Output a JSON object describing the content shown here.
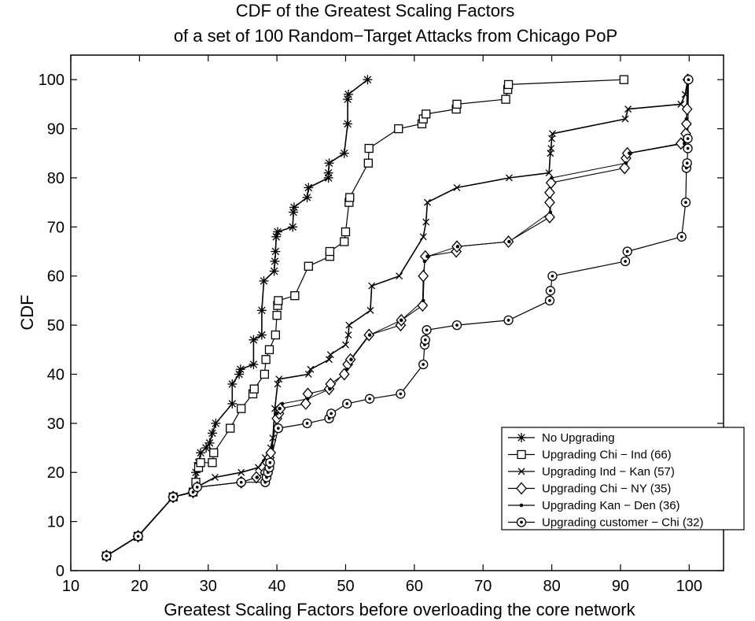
{
  "chart_data": {
    "type": "line",
    "title": "CDF of the Greatest Scaling Factors",
    "subtitle": "of a set of 100 Random−Target Attacks from Chicago PoP",
    "xlabel": "Greatest Scaling Factors before overloading the core network",
    "ylabel": "CDF",
    "xlim": [
      10,
      105
    ],
    "ylim": [
      0,
      105
    ],
    "xticks": [
      "10",
      "20",
      "30",
      "40",
      "50",
      "60",
      "70",
      "80",
      "90",
      "100"
    ],
    "yticks": [
      "0",
      "10",
      "20",
      "30",
      "40",
      "50",
      "60",
      "70",
      "80",
      "90",
      "100"
    ],
    "grid": false,
    "legend_position": "bottom-right",
    "series": [
      {
        "name": "No Upgrading",
        "marker": "asterisk",
        "points": [
          [
            15.2,
            3
          ],
          [
            19.8,
            7
          ],
          [
            24.9,
            15
          ],
          [
            27.8,
            16
          ],
          [
            28.2,
            20
          ],
          [
            28.6,
            22
          ],
          [
            28.9,
            24
          ],
          [
            29.7,
            25
          ],
          [
            30.2,
            26
          ],
          [
            30.6,
            28
          ],
          [
            31.1,
            30
          ],
          [
            33.5,
            34
          ],
          [
            33.5,
            38
          ],
          [
            34.5,
            40
          ],
          [
            34.7,
            41
          ],
          [
            36.6,
            42
          ],
          [
            36.6,
            47
          ],
          [
            37.8,
            48
          ],
          [
            37.8,
            53
          ],
          [
            38.1,
            59
          ],
          [
            39.6,
            61
          ],
          [
            39.7,
            63
          ],
          [
            39.8,
            65
          ],
          [
            39.9,
            68
          ],
          [
            40.1,
            69
          ],
          [
            42.3,
            70
          ],
          [
            42.4,
            73
          ],
          [
            42.5,
            74
          ],
          [
            44.4,
            76
          ],
          [
            44.6,
            78
          ],
          [
            47.5,
            80
          ],
          [
            47.5,
            81
          ],
          [
            47.6,
            83
          ],
          [
            49.8,
            85
          ],
          [
            50.3,
            91
          ],
          [
            50.3,
            96
          ],
          [
            50.4,
            97
          ],
          [
            53.2,
            100
          ]
        ]
      },
      {
        "name": "Upgrading Chi − Ind (66)",
        "marker": "square",
        "points": [
          [
            15.2,
            3
          ],
          [
            19.8,
            7
          ],
          [
            24.9,
            15
          ],
          [
            27.8,
            16
          ],
          [
            28.2,
            18
          ],
          [
            28.6,
            21
          ],
          [
            28.9,
            22
          ],
          [
            30.6,
            22
          ],
          [
            30.8,
            24
          ],
          [
            33.2,
            29
          ],
          [
            34.8,
            33
          ],
          [
            36.5,
            36
          ],
          [
            36.7,
            37
          ],
          [
            38.2,
            40
          ],
          [
            38.4,
            43
          ],
          [
            38.9,
            45
          ],
          [
            39.8,
            48
          ],
          [
            40.0,
            52
          ],
          [
            40.1,
            54
          ],
          [
            40.2,
            55
          ],
          [
            42.6,
            56
          ],
          [
            44.6,
            62
          ],
          [
            47.7,
            64
          ],
          [
            47.7,
            65
          ],
          [
            49.8,
            67
          ],
          [
            50.0,
            69
          ],
          [
            50.5,
            75
          ],
          [
            50.6,
            76
          ],
          [
            53.3,
            83
          ],
          [
            53.4,
            86
          ],
          [
            57.7,
            90
          ],
          [
            61.1,
            91
          ],
          [
            61.3,
            92
          ],
          [
            61.7,
            93
          ],
          [
            66.1,
            94
          ],
          [
            66.2,
            95
          ],
          [
            73.3,
            96
          ],
          [
            73.6,
            98
          ],
          [
            73.7,
            99
          ],
          [
            90.5,
            100
          ]
        ]
      },
      {
        "name": "Upgrading Ind − Kan (57)",
        "marker": "cross",
        "points": [
          [
            15.2,
            3
          ],
          [
            19.8,
            7
          ],
          [
            24.9,
            15
          ],
          [
            27.8,
            16
          ],
          [
            28.3,
            17
          ],
          [
            31.0,
            19
          ],
          [
            34.8,
            20
          ],
          [
            37.3,
            21
          ],
          [
            38.3,
            23
          ],
          [
            39.1,
            25
          ],
          [
            39.4,
            27
          ],
          [
            39.7,
            33
          ],
          [
            40.1,
            38
          ],
          [
            40.3,
            39
          ],
          [
            44.6,
            40
          ],
          [
            44.9,
            41
          ],
          [
            47.6,
            43
          ],
          [
            47.8,
            44
          ],
          [
            50.0,
            46
          ],
          [
            50.4,
            48
          ],
          [
            50.5,
            50
          ],
          [
            53.6,
            53
          ],
          [
            53.8,
            58
          ],
          [
            57.8,
            60
          ],
          [
            61.3,
            68
          ],
          [
            61.7,
            71
          ],
          [
            61.9,
            75
          ],
          [
            66.2,
            78
          ],
          [
            73.8,
            80
          ],
          [
            79.6,
            81
          ],
          [
            79.8,
            85
          ],
          [
            79.9,
            86
          ],
          [
            80.0,
            88
          ],
          [
            80.1,
            89
          ],
          [
            90.7,
            92
          ],
          [
            91.1,
            94
          ],
          [
            98.8,
            95
          ],
          [
            99.4,
            97
          ],
          [
            99.8,
            100
          ]
        ]
      },
      {
        "name": "Upgrading Chi − NY (35)",
        "marker": "diamond",
        "points": [
          [
            15.2,
            3
          ],
          [
            19.8,
            7
          ],
          [
            24.9,
            15
          ],
          [
            27.8,
            16
          ],
          [
            28.4,
            17
          ],
          [
            34.8,
            18
          ],
          [
            37.0,
            19
          ],
          [
            38.3,
            20
          ],
          [
            38.6,
            22
          ],
          [
            38.9,
            23
          ],
          [
            39.1,
            24
          ],
          [
            40.0,
            31
          ],
          [
            40.3,
            32
          ],
          [
            40.5,
            33
          ],
          [
            44.2,
            34
          ],
          [
            44.5,
            36
          ],
          [
            47.6,
            37
          ],
          [
            47.8,
            38
          ],
          [
            49.8,
            40
          ],
          [
            50.3,
            42
          ],
          [
            50.7,
            43
          ],
          [
            53.4,
            48
          ],
          [
            58.0,
            50
          ],
          [
            58.1,
            51
          ],
          [
            61.2,
            54
          ],
          [
            61.3,
            60
          ],
          [
            61.6,
            64
          ],
          [
            66.1,
            65
          ],
          [
            66.2,
            66
          ],
          [
            73.7,
            67
          ],
          [
            79.7,
            72
          ],
          [
            79.7,
            75
          ],
          [
            79.7,
            77
          ],
          [
            79.9,
            79
          ],
          [
            90.6,
            82
          ],
          [
            90.8,
            84
          ],
          [
            91.0,
            85
          ],
          [
            98.8,
            87
          ],
          [
            99.5,
            89
          ],
          [
            99.6,
            91
          ],
          [
            99.7,
            94
          ],
          [
            99.8,
            100
          ]
        ]
      },
      {
        "name": "Upgrading Kan − Den (36)",
        "marker": "dot",
        "points": [
          [
            15.2,
            3
          ],
          [
            19.8,
            7
          ],
          [
            24.9,
            15
          ],
          [
            27.8,
            16
          ],
          [
            28.4,
            17
          ],
          [
            34.8,
            18
          ],
          [
            37.1,
            19
          ],
          [
            38.3,
            20
          ],
          [
            38.9,
            22
          ],
          [
            39.3,
            25
          ],
          [
            40.0,
            32
          ],
          [
            40.4,
            33
          ],
          [
            40.8,
            34
          ],
          [
            44.5,
            35
          ],
          [
            47.7,
            37
          ],
          [
            50.2,
            41
          ],
          [
            50.8,
            43
          ],
          [
            53.5,
            48
          ],
          [
            58.1,
            51
          ],
          [
            61.3,
            55
          ],
          [
            61.5,
            63
          ],
          [
            61.9,
            64
          ],
          [
            66.3,
            66
          ],
          [
            73.8,
            67
          ],
          [
            79.8,
            73
          ],
          [
            80.0,
            80
          ],
          [
            90.8,
            83
          ],
          [
            91.3,
            85
          ],
          [
            99.3,
            87
          ],
          [
            99.6,
            92
          ],
          [
            99.7,
            100
          ]
        ]
      },
      {
        "name": "Upgrading customer − Chi (32)",
        "marker": "circle",
        "points": [
          [
            15.2,
            3
          ],
          [
            19.8,
            7
          ],
          [
            24.9,
            15
          ],
          [
            27.8,
            16
          ],
          [
            28.4,
            17
          ],
          [
            34.8,
            18
          ],
          [
            38.3,
            18
          ],
          [
            38.5,
            19
          ],
          [
            38.7,
            20
          ],
          [
            38.9,
            21
          ],
          [
            39.0,
            22
          ],
          [
            40.2,
            29
          ],
          [
            44.4,
            30
          ],
          [
            47.6,
            31
          ],
          [
            47.9,
            32
          ],
          [
            50.2,
            34
          ],
          [
            53.5,
            35
          ],
          [
            58.0,
            36
          ],
          [
            61.3,
            42
          ],
          [
            61.5,
            46
          ],
          [
            61.6,
            47
          ],
          [
            61.8,
            49
          ],
          [
            66.2,
            50
          ],
          [
            73.7,
            51
          ],
          [
            79.7,
            55
          ],
          [
            79.8,
            57
          ],
          [
            80.1,
            60
          ],
          [
            90.7,
            63
          ],
          [
            91.0,
            65
          ],
          [
            98.9,
            68
          ],
          [
            99.5,
            75
          ],
          [
            99.6,
            82
          ],
          [
            99.7,
            83
          ],
          [
            99.8,
            86
          ],
          [
            99.8,
            88
          ],
          [
            99.9,
            100
          ]
        ]
      }
    ]
  }
}
